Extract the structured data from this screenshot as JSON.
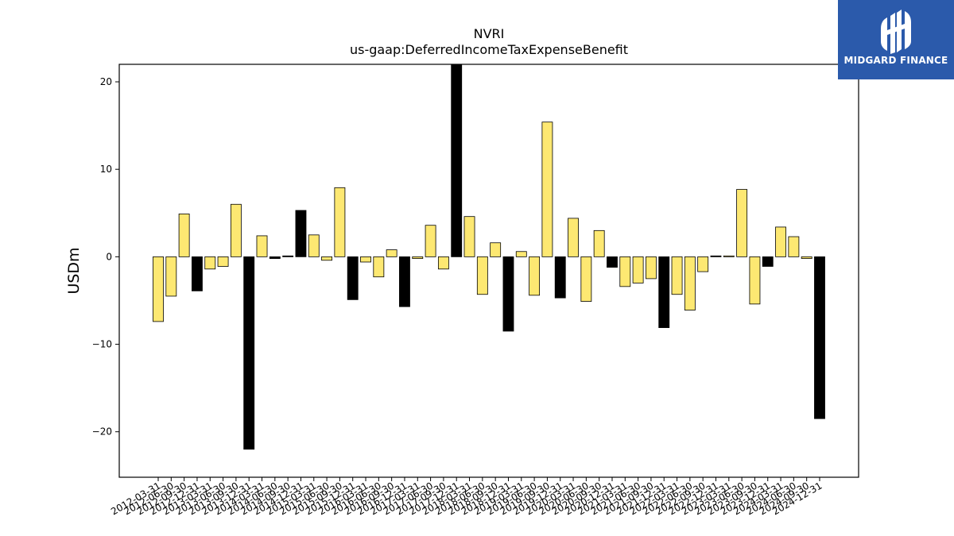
{
  "chart_data": {
    "type": "bar",
    "title": "NVRI",
    "subtitle": "us-gaap:DeferredIncomeTaxExpenseBenefit",
    "xlabel": "",
    "ylabel": "USDm",
    "ylim": [
      -25.2,
      22
    ],
    "yticks": [
      20,
      10,
      0,
      -10,
      -20
    ],
    "ytick_labels": [
      "20",
      "10",
      "0",
      "−10",
      "−20"
    ],
    "grid": false,
    "legend": "none",
    "bar_fill_colors": {
      "default": "#fde872",
      "highlight": "#000000"
    },
    "categories": [
      "2012-03-31",
      "2012-06-30",
      "2012-09-30",
      "2012-12-31",
      "2013-03-31",
      "2013-06-30",
      "2013-09-30",
      "2013-12-31",
      "2014-03-31",
      "2014-06-30",
      "2014-09-30",
      "2014-12-31",
      "2015-03-31",
      "2015-06-30",
      "2015-09-30",
      "2015-12-31",
      "2016-03-31",
      "2016-06-30",
      "2016-09-30",
      "2016-12-31",
      "2017-03-31",
      "2017-06-30",
      "2017-09-30",
      "2017-12-31",
      "2018-03-31",
      "2018-06-30",
      "2018-09-30",
      "2018-12-31",
      "2019-03-31",
      "2019-06-30",
      "2019-09-30",
      "2019-12-31",
      "2020-03-31",
      "2020-06-30",
      "2020-09-30",
      "2020-12-31",
      "2021-03-31",
      "2021-06-30",
      "2021-09-30",
      "2021-12-31",
      "2022-03-31",
      "2022-06-30",
      "2022-09-30",
      "2022-12-31",
      "2023-03-31",
      "2023-06-30",
      "2023-09-30",
      "2023-12-31",
      "2024-03-31",
      "2024-06-30",
      "2024-09-30",
      "2024-12-31"
    ],
    "values": [
      -7.4,
      -4.5,
      4.9,
      -3.9,
      -1.4,
      -1.1,
      6.0,
      -22.0,
      2.4,
      -0.2,
      0.1,
      5.3,
      2.5,
      -0.4,
      7.9,
      -4.9,
      -0.6,
      -2.3,
      0.8,
      -5.7,
      -0.2,
      3.6,
      -1.4,
      22.0,
      4.6,
      -4.3,
      1.6,
      -8.5,
      0.6,
      -4.4,
      15.4,
      -4.7,
      4.4,
      -5.1,
      3.0,
      -1.2,
      -3.4,
      -3.0,
      -2.5,
      -8.1,
      -4.3,
      -6.1,
      -1.7,
      0.1,
      0.1,
      7.7,
      -5.4,
      -1.1,
      3.4,
      2.3,
      -0.2,
      -18.5
    ],
    "highlight": [
      false,
      false,
      false,
      true,
      false,
      false,
      false,
      true,
      false,
      true,
      true,
      true,
      false,
      false,
      false,
      true,
      false,
      false,
      false,
      true,
      false,
      false,
      false,
      true,
      false,
      false,
      false,
      true,
      false,
      false,
      false,
      true,
      false,
      false,
      false,
      true,
      false,
      false,
      false,
      true,
      false,
      false,
      false,
      true,
      false,
      false,
      false,
      true,
      false,
      false,
      false,
      true
    ]
  },
  "logo": {
    "text": "MIDGARD FINANCE",
    "background": "#2b5aab"
  }
}
